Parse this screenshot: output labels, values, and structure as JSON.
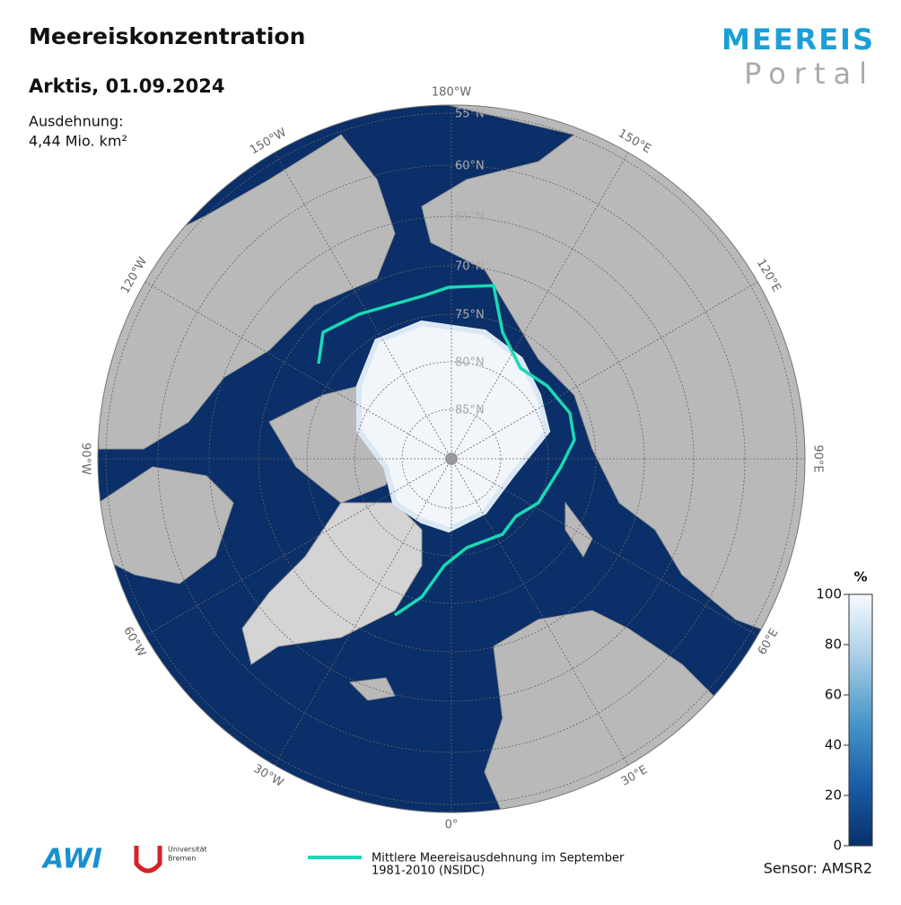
{
  "header": {
    "title": "Meereiskonzentration",
    "subtitle": "Arktis, 01.09.2024",
    "extent_label": "Ausdehnung:",
    "extent_value": "4,44 Mio. km²"
  },
  "logo": {
    "line1": "MEEREIS",
    "line2": "Portal"
  },
  "map": {
    "longitude_labels": [
      "0°",
      "30°E",
      "60°E",
      "90°E",
      "120°E",
      "150°E",
      "180°W",
      "150°W",
      "120°W",
      "90°W",
      "60°W",
      "30°W"
    ],
    "latitude_labels": [
      "55°N",
      "60°N",
      "65°N",
      "70°N",
      "75°N",
      "80°N",
      "85°N"
    ]
  },
  "colorbar": {
    "unit": "%",
    "ticks": [
      0,
      20,
      40,
      60,
      80,
      100
    ]
  },
  "legend": {
    "line1": "Mittlere Meereisausdehnung im September",
    "line2": "1981-2010 (NSIDC)"
  },
  "footer": {
    "awi": "AWI",
    "university_line1": "Universität",
    "university_line2": "Bremen",
    "sensor": "Sensor: AMSR2"
  }
}
